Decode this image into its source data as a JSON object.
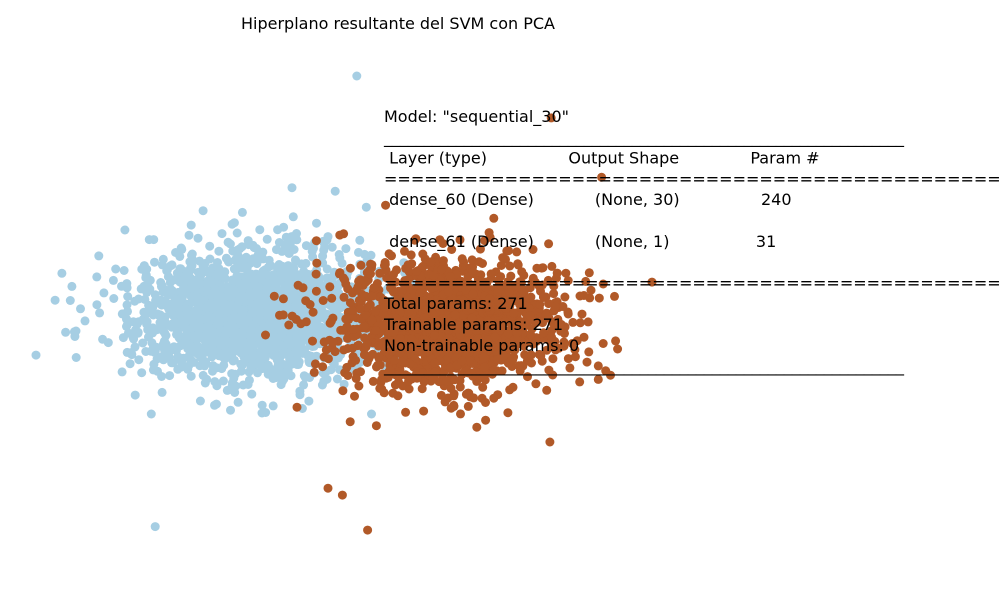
{
  "chart_data": {
    "type": "scatter",
    "title": "Hiperplano resultante del SVM con PCA",
    "xlabel": "",
    "ylabel": "",
    "axes_visible": false,
    "grid": false,
    "xlim": [
      -4.5,
      5.5
    ],
    "ylim": [
      -3.5,
      3.8
    ],
    "series": [
      {
        "color": "#a6cee3",
        "cluster": {
          "center": [
            -1.5,
            0.1
          ],
          "spread": [
            0.85,
            0.45
          ],
          "count": 1800,
          "seed": 7
        },
        "points": [
          [
            -0.1,
            3.5
          ],
          [
            -4.0,
            -0.15
          ],
          [
            -2.9,
            -2.95
          ],
          [
            -1.0,
            1.9
          ],
          [
            -0.4,
            1.85
          ],
          [
            -1.8,
            1.4
          ],
          [
            -1.2,
            1.3
          ],
          [
            -0.5,
            1.2
          ]
        ]
      },
      {
        "color": "#b15928",
        "cluster": {
          "center": [
            1.2,
            -0.05
          ],
          "spread": [
            0.8,
            0.45
          ],
          "count": 1700,
          "seed": 13
        },
        "points": [
          [
            2.6,
            2.9
          ],
          [
            3.3,
            2.05
          ],
          [
            0.3,
            1.65
          ],
          [
            4.0,
            0.55
          ],
          [
            0.05,
            -3.0
          ],
          [
            -0.5,
            -2.4
          ],
          [
            -0.3,
            -2.5
          ],
          [
            3.0,
            0.35
          ]
        ]
      }
    ],
    "summary_lines": [
      "Model: \"sequential_30\"",
      "_________________________________________________________________",
      " Layer (type)                Output Shape              Param #",
      "=================================================================",
      " dense_60 (Dense)            (None, 30)                240",
      "",
      " dense_61 (Dense)            (None, 1)                 31",
      "",
      "=================================================================",
      "Total params: 271",
      "Trainable params: 271",
      "Non-trainable params: 0",
      "_________________________________________________________________"
    ]
  }
}
